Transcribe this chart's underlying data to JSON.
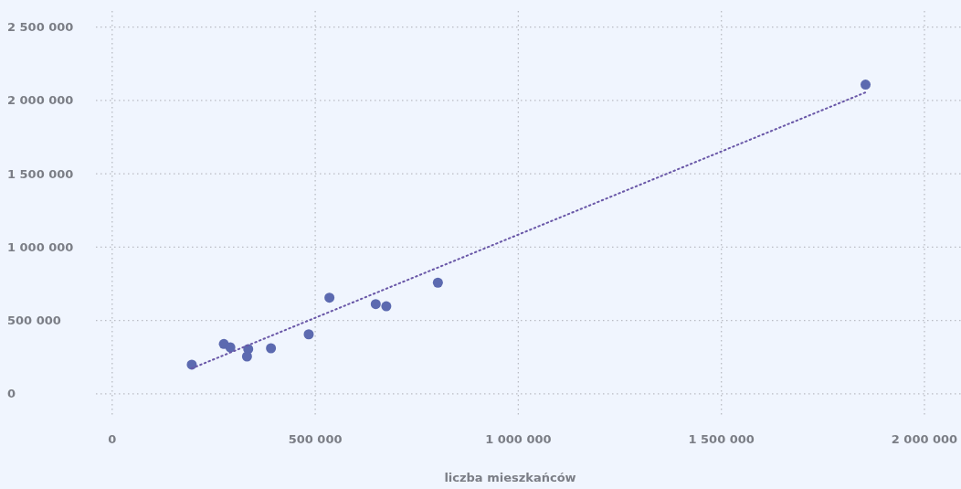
{
  "chart_data": {
    "type": "scatter",
    "xlabel": "liczba mieszkańców",
    "xlim": [
      -40000,
      2090000
    ],
    "ylim": [
      -150000,
      2610000
    ],
    "xticks": [
      {
        "value": 0,
        "label": "0"
      },
      {
        "value": 500000,
        "label": "500 000"
      },
      {
        "value": 1000000,
        "label": "1 000 000"
      },
      {
        "value": 1500000,
        "label": "1 500 000"
      },
      {
        "value": 2000000,
        "label": "2 000 000"
      }
    ],
    "yticks": [
      {
        "value": 0,
        "label": "0"
      },
      {
        "value": 500000,
        "label": "500 000"
      },
      {
        "value": 1000000,
        "label": "1 000 000"
      },
      {
        "value": 1500000,
        "label": "1 500 000"
      },
      {
        "value": 2000000,
        "label": "2 000 000"
      },
      {
        "value": 2500000,
        "label": "2 500 000"
      }
    ],
    "grid": true,
    "series": [
      {
        "color": "#5c6ab0",
        "marker": "circle",
        "x": [
          196000,
          275000,
          291000,
          335000,
          332000,
          391000,
          484000,
          535000,
          649000,
          675000,
          802000,
          1855000
        ],
        "values": [
          199000,
          340000,
          317000,
          305000,
          255000,
          311000,
          406000,
          656000,
          612000,
          597000,
          758000,
          2108000
        ]
      },
      {
        "type": "line",
        "color": "#6a58a8",
        "line_style": "dotted",
        "marker": "none",
        "x": [
          196000,
          1855000
        ],
        "values": [
          174000,
          2055000
        ]
      }
    ]
  }
}
